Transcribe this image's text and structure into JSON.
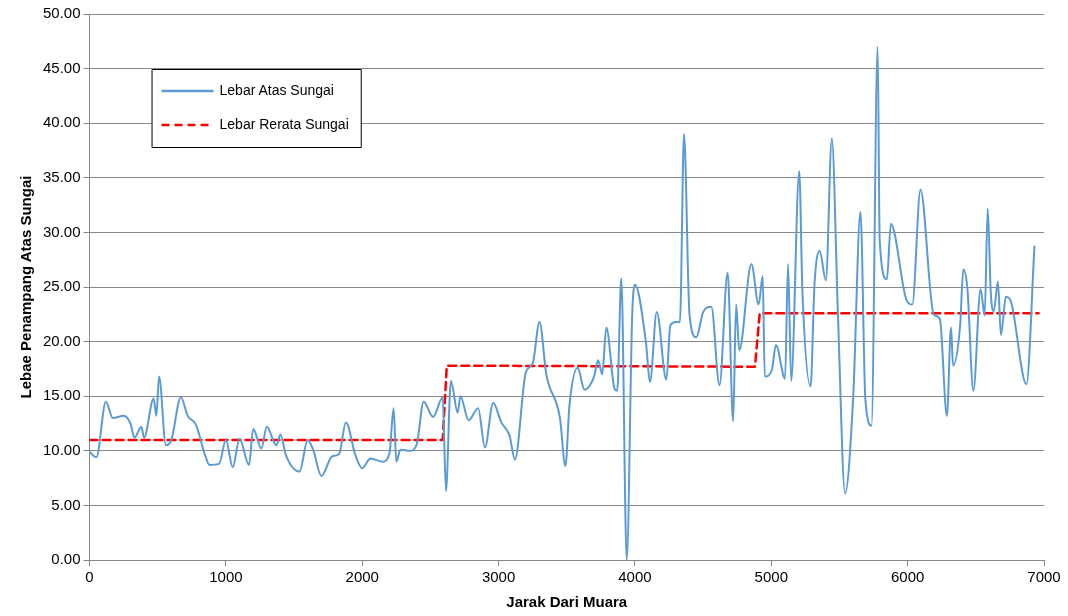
{
  "chart_data": {
    "type": "line",
    "xlabel": "Jarak Dari Muara",
    "ylabel": "Lebae Penampang Atas Sungai",
    "xlim": [
      0,
      7000
    ],
    "xticks": [
      0,
      1000,
      2000,
      3000,
      4000,
      5000,
      6000,
      7000
    ],
    "ylim": [
      0,
      50
    ],
    "yticks": [
      {
        "value": 0,
        "label": "0.00"
      },
      {
        "value": 5,
        "label": "5.00"
      },
      {
        "value": 10,
        "label": "10.00"
      },
      {
        "value": 15,
        "label": "15.00"
      },
      {
        "value": 20,
        "label": "20.00"
      },
      {
        "value": 25,
        "label": "25.00"
      },
      {
        "value": 30,
        "label": "30.00"
      },
      {
        "value": 35,
        "label": "35.00"
      },
      {
        "value": 40,
        "label": "40.00"
      },
      {
        "value": 45,
        "label": "45.00"
      },
      {
        "value": 50,
        "label": "50.00"
      }
    ],
    "grid": "y",
    "legend": "top left",
    "marker": "none",
    "series": [
      {
        "name": "Lebar Atas Sungai",
        "color": "#5b9bd5",
        "line_style": "solid",
        "x": [
          0,
          50,
          120,
          170,
          250,
          300,
          330,
          380,
          400,
          470,
          490,
          510,
          560,
          600,
          670,
          720,
          780,
          850,
          880,
          950,
          1000,
          1050,
          1100,
          1170,
          1200,
          1260,
          1300,
          1370,
          1400,
          1440,
          1540,
          1600,
          1640,
          1700,
          1780,
          1830,
          1880,
          1950,
          2000,
          2060,
          2150,
          2200,
          2230,
          2250,
          2280,
          2350,
          2400,
          2450,
          2520,
          2590,
          2614,
          2650,
          2700,
          2720,
          2780,
          2850,
          2900,
          2960,
          3020,
          3080,
          3120,
          3200,
          3250,
          3300,
          3350,
          3450,
          3490,
          3520,
          3580,
          3630,
          3700,
          3730,
          3760,
          3790,
          3850,
          3870,
          3900,
          3940,
          3980,
          4000,
          4080,
          4110,
          4160,
          4230,
          4260,
          4300,
          4330,
          4360,
          4400,
          4450,
          4500,
          4560,
          4620,
          4680,
          4720,
          4742,
          4765,
          4854,
          4907,
          4937,
          4952,
          5004,
          5034,
          5101,
          5123,
          5146,
          5205,
          5228,
          5288,
          5317,
          5355,
          5400,
          5444,
          5489,
          5541,
          5601,
          5654,
          5690,
          5735,
          5780,
          5795,
          5848,
          5877,
          5989,
          6034,
          6094,
          6191,
          6236,
          6288,
          6318,
          6333,
          6385,
          6408,
          6438,
          6482,
          6535,
          6565,
          6587,
          6610,
          6632,
          6662,
          6684,
          6721,
          6759,
          6871,
          6930
        ],
        "values": [
          9.9,
          9.4,
          14.5,
          13.0,
          13.2,
          12.5,
          11.2,
          12.2,
          11.2,
          14.8,
          13.2,
          16.8,
          10.5,
          11.0,
          14.9,
          13.2,
          12.4,
          9.5,
          8.7,
          8.8,
          11.0,
          8.5,
          11.1,
          8.7,
          12.0,
          10.2,
          12.2,
          10.5,
          11.5,
          9.6,
          8.1,
          11.0,
          10.1,
          7.7,
          9.5,
          9.7,
          12.6,
          9.6,
          8.4,
          9.3,
          9.0,
          9.8,
          13.9,
          9.0,
          10.1,
          10.0,
          10.6,
          14.5,
          13.1,
          14.9,
          6.3,
          16.4,
          13.5,
          15.0,
          12.8,
          13.9,
          10.3,
          14.4,
          12.6,
          11.4,
          9.2,
          17.2,
          18.0,
          21.8,
          17.0,
          13.0,
          8.6,
          14.2,
          17.6,
          15.6,
          16.8,
          18.3,
          17.0,
          21.3,
          15.7,
          15.5,
          25.8,
          0,
          22.5,
          25.2,
          20.0,
          16.3,
          22.7,
          16.5,
          21.5,
          21.8,
          21.8,
          39.0,
          22.5,
          20.4,
          22.7,
          23.2,
          16.0,
          26.3,
          12.7,
          23.4,
          19.2,
          27.1,
          23.4,
          26.0,
          16.8,
          17.4,
          19.7,
          16.6,
          27.1,
          16.4,
          35.6,
          24.7,
          15.9,
          25.3,
          28.3,
          25.6,
          38.6,
          22.4,
          6.1,
          15.0,
          31.9,
          14.7,
          12.3,
          47.0,
          29.2,
          25.7,
          30.8,
          23.9,
          23.4,
          33.9,
          22.5,
          22.1,
          13.2,
          21.3,
          17.8,
          21.5,
          26.6,
          24.9,
          15.5,
          24.8,
          22.4,
          32.2,
          24.4,
          22.8,
          25.5,
          20.6,
          24.1,
          23.6,
          16.1,
          28.7
        ]
      },
      {
        "name": "Lebar Rerata Sungai",
        "color": "#ff0000",
        "line_style": "dashed",
        "x": [
          0,
          2590,
          2620,
          4880,
          4915,
          6960
        ],
        "values": [
          11.0,
          11.0,
          17.8,
          17.7,
          22.6,
          22.6
        ]
      }
    ]
  }
}
